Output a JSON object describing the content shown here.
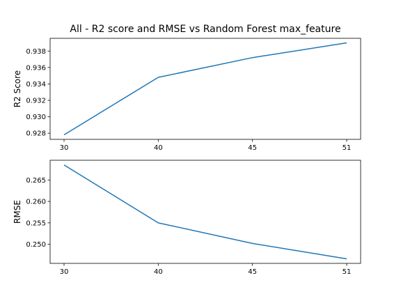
{
  "title": "All - R2 score and RMSE vs Random Forest max_feature",
  "colors": {
    "line": "#1f77b4",
    "axes": "#000000"
  },
  "chart_data": [
    {
      "type": "line",
      "categories": [
        "30",
        "40",
        "45",
        "51"
      ],
      "values": [
        0.9278,
        0.9348,
        0.9372,
        0.939
      ],
      "ylabel": "R2 Score",
      "yticks": [
        0.928,
        0.93,
        0.932,
        0.934,
        0.936,
        0.938
      ],
      "ytick_labels": [
        "0.928",
        "0.930",
        "0.932",
        "0.934",
        "0.936",
        "0.938"
      ],
      "ylim": [
        0.92725,
        0.93955
      ]
    },
    {
      "type": "line",
      "categories": [
        "30",
        "40",
        "45",
        "51"
      ],
      "values": [
        0.2685,
        0.255,
        0.2502,
        0.2466
      ],
      "ylabel": "RMSE",
      "yticks": [
        0.25,
        0.255,
        0.26,
        0.265
      ],
      "ytick_labels": [
        "0.250",
        "0.255",
        "0.260",
        "0.265"
      ],
      "ylim": [
        0.24555,
        0.2696
      ]
    }
  ]
}
